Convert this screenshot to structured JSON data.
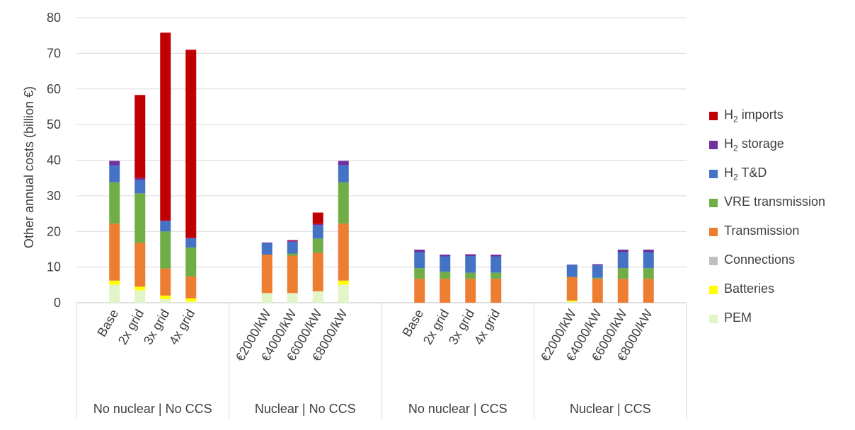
{
  "chart_data": {
    "type": "bar",
    "stacked": true,
    "ylabel": "Other annual costs (billion €)",
    "ylim": [
      0,
      80
    ],
    "yticks": [
      0,
      10,
      20,
      30,
      40,
      50,
      60,
      70,
      80
    ],
    "grid": true,
    "legend_position": "right",
    "groups": [
      {
        "label": "No nuclear | No CCS",
        "categories": [
          "Base",
          "2x grid",
          "3x grid",
          "4x grid"
        ]
      },
      {
        "label": "Nuclear | No CCS",
        "categories": [
          "€2000/kW",
          "€4000/kW",
          "€6000/kW",
          "€8000/kW"
        ]
      },
      {
        "label": "No nuclear | CCS",
        "categories": [
          "Base",
          "2x grid",
          "3x grid",
          "4x grid"
        ]
      },
      {
        "label": "Nuclear | CCS",
        "categories": [
          "€2000/kW",
          "€4000/kW",
          "€6000/kW",
          "€8000/kW"
        ]
      }
    ],
    "series": [
      {
        "name": "PEM",
        "color": "#E2F5C8",
        "values": [
          5.0,
          3.5,
          1.0,
          0.3,
          2.7,
          2.7,
          3.2,
          5.0,
          0,
          0,
          0,
          0,
          0.3,
          0,
          0,
          0
        ]
      },
      {
        "name": "Batteries",
        "color": "#FFFF00",
        "values": [
          1.2,
          1.0,
          1.0,
          0.9,
          0,
          0,
          0,
          1.2,
          0,
          0,
          0,
          0,
          0.3,
          0,
          0,
          0
        ]
      },
      {
        "name": "Connections",
        "color": "#BFBFBF",
        "values": [
          0,
          0,
          0,
          0,
          0,
          0,
          0,
          0,
          0,
          0,
          0,
          0,
          0,
          0,
          0,
          0
        ]
      },
      {
        "name": "Transmission",
        "color": "#ED7D31",
        "values": [
          16.0,
          12.3,
          7.6,
          6.2,
          10.8,
          10.5,
          10.8,
          16.0,
          6.7,
          6.7,
          6.7,
          6.7,
          6.6,
          6.7,
          6.7,
          6.7
        ]
      },
      {
        "name": "VRE transmission",
        "color": "#70AD47",
        "values": [
          11.6,
          13.9,
          10.4,
          8.1,
          0,
          0.6,
          4.0,
          11.6,
          3.0,
          2.0,
          1.7,
          1.7,
          0,
          0.3,
          3.0,
          3.0
        ]
      },
      {
        "name": "H₂ T&D",
        "color": "#4472C4",
        "values": [
          4.8,
          3.7,
          2.8,
          2.5,
          3.2,
          3.3,
          3.7,
          4.8,
          4.5,
          4.3,
          4.7,
          4.6,
          3.4,
          3.5,
          4.5,
          4.5
        ]
      },
      {
        "name": "H₂ storage",
        "color": "#7030A0",
        "values": [
          1.2,
          0.6,
          0.3,
          0.2,
          0.2,
          0.3,
          0.4,
          1.2,
          0.7,
          0.5,
          0.5,
          0.5,
          0.1,
          0.3,
          0.7,
          0.7
        ]
      },
      {
        "name": "H₂ imports",
        "color": "#C00000",
        "values": [
          0,
          23.3,
          52.7,
          52.8,
          0,
          0.2,
          3.2,
          0,
          0,
          0,
          0,
          0,
          0,
          0,
          0,
          0
        ]
      }
    ]
  },
  "legend": {
    "items": [
      {
        "prefix": "H",
        "sub": "2",
        "suffix": " imports",
        "color": "#C00000"
      },
      {
        "prefix": "H",
        "sub": "2",
        "suffix": " storage",
        "color": "#7030A0"
      },
      {
        "prefix": "H",
        "sub": "2",
        "suffix": " T&D",
        "color": "#4472C4"
      },
      {
        "prefix": "VRE transmission",
        "sub": "",
        "suffix": "",
        "color": "#70AD47"
      },
      {
        "prefix": "Transmission",
        "sub": "",
        "suffix": "",
        "color": "#ED7D31"
      },
      {
        "prefix": "Connections",
        "sub": "",
        "suffix": "",
        "color": "#BFBFBF"
      },
      {
        "prefix": "Batteries",
        "sub": "",
        "suffix": "",
        "color": "#FFFF00"
      },
      {
        "prefix": "PEM",
        "sub": "",
        "suffix": "",
        "color": "#E2F5C8"
      }
    ]
  }
}
